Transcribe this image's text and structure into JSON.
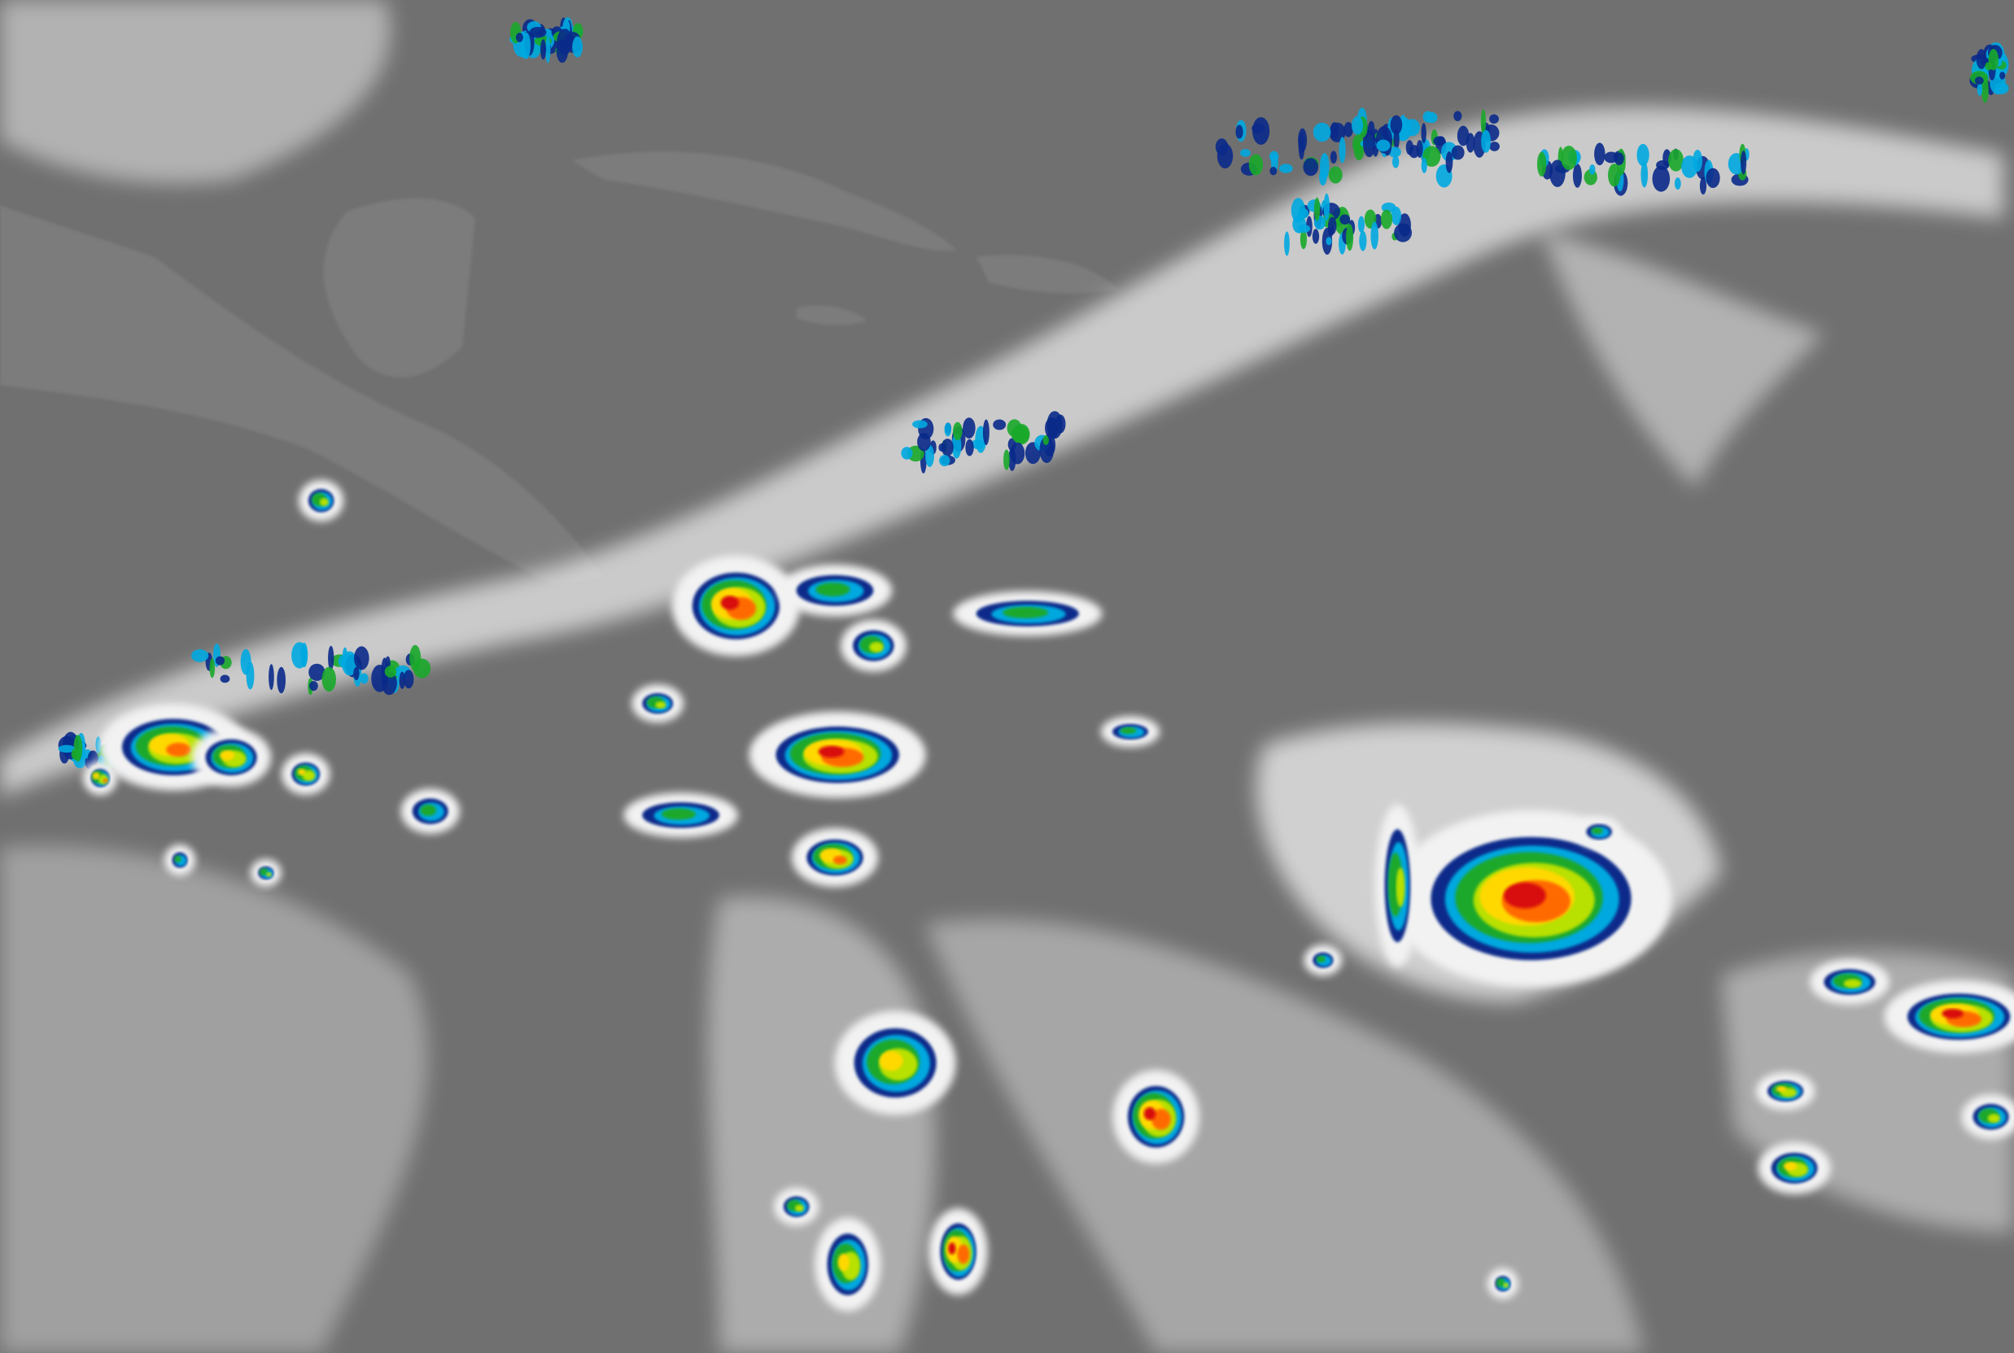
{
  "image": {
    "kind": "enhanced infrared satellite imagery",
    "background_gray": "#707070",
    "land_gray": "#7c7c7c",
    "cloud_white": "#f2f2f2",
    "enhancement_palette": [
      "#0a2a8a",
      "#00a8e0",
      "#1aa82a",
      "#b8e000",
      "#ffd800",
      "#ff6a00",
      "#d81010"
    ]
  }
}
